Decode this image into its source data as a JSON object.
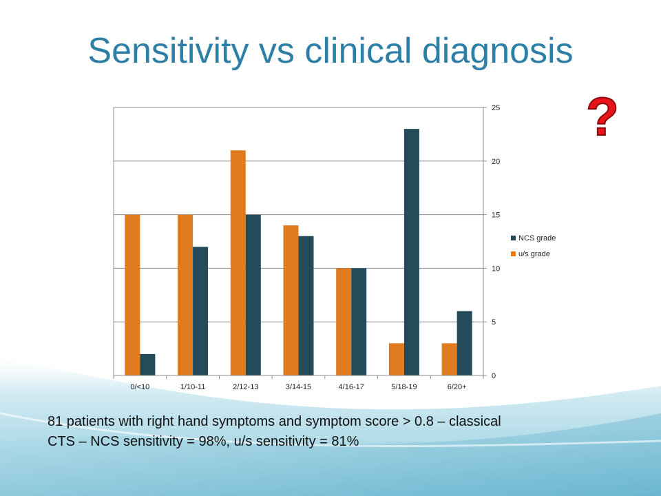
{
  "slide": {
    "title": "Sensitivity vs clinical diagnosis",
    "caption_line1": "81 patients with right hand symptoms and symptom score > 0.8 – classical",
    "caption_line2": "CTS – NCS sensitivity = 98%, u/s sensitivity = 81%",
    "accent_color": "#2e7fa6",
    "question_mark": "?"
  },
  "chart_data": {
    "type": "bar",
    "categories": [
      "0/<10",
      "1/10-11",
      "2/12-13",
      "3/14-15",
      "4/16-17",
      "5/18-19",
      "6/20+"
    ],
    "series": [
      {
        "name": "u/s grade",
        "color": "#e07b20",
        "values": [
          15,
          15,
          21,
          14,
          10,
          3,
          3
        ]
      },
      {
        "name": "NCS grade",
        "color": "#244b5a",
        "values": [
          2,
          12,
          15,
          13,
          10,
          23,
          6
        ]
      }
    ],
    "legend_order": [
      "NCS grade",
      "u/s grade"
    ],
    "legend_position": "right",
    "y_axis_position": "right",
    "ylim": [
      0,
      25
    ],
    "yticks": [
      0,
      5,
      10,
      15,
      20,
      25
    ],
    "grid": true,
    "title": "",
    "xlabel": "",
    "ylabel": ""
  }
}
